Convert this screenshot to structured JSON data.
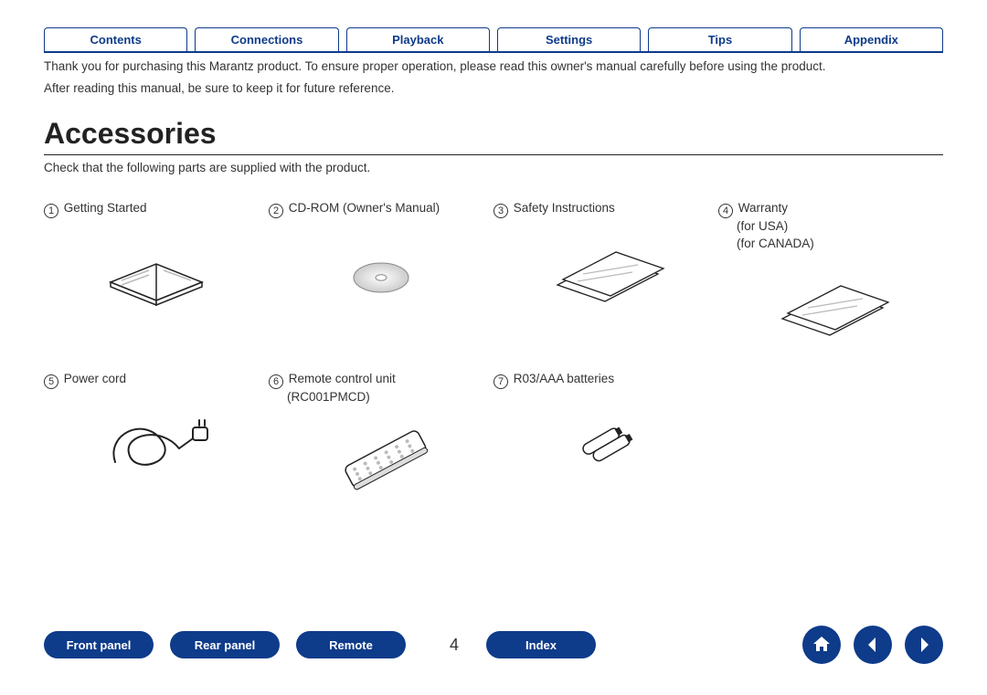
{
  "colors": {
    "brand": "#0e3b8a",
    "rule": "#222222",
    "text": "#333333"
  },
  "top_tabs": [
    {
      "label": "Contents"
    },
    {
      "label": "Connections"
    },
    {
      "label": "Playback"
    },
    {
      "label": "Settings"
    },
    {
      "label": "Tips"
    },
    {
      "label": "Appendix"
    }
  ],
  "intro": {
    "line1": "Thank you for purchasing this Marantz product. To ensure proper operation, please read this owner's manual carefully before using the product.",
    "line2": "After reading this manual, be sure to keep it for future reference."
  },
  "section_title": "Accessories",
  "section_subtitle": "Check that the following parts are supplied with the product.",
  "accessories": [
    {
      "num": "1",
      "label": "Getting Started",
      "icon": "booklet"
    },
    {
      "num": "2",
      "label": "CD-ROM (Owner's Manual)",
      "icon": "cd"
    },
    {
      "num": "3",
      "label": "Safety Instructions",
      "icon": "sheets"
    },
    {
      "num": "4",
      "label": "Warranty\n(for USA)\n(for CANADA)",
      "icon": "sheets"
    },
    {
      "num": "5",
      "label": "Power cord",
      "icon": "powercord"
    },
    {
      "num": "6",
      "label": "Remote control unit\n(RC001PMCD)",
      "icon": "remote"
    },
    {
      "num": "7",
      "label": "R03/AAA batteries",
      "icon": "batteries"
    }
  ],
  "bottom_nav": {
    "pills": [
      {
        "label": "Front panel"
      },
      {
        "label": "Rear panel"
      },
      {
        "label": "Remote"
      },
      {
        "label": "Index"
      }
    ],
    "page_number": "4",
    "icons": [
      "home",
      "back",
      "forward"
    ]
  }
}
